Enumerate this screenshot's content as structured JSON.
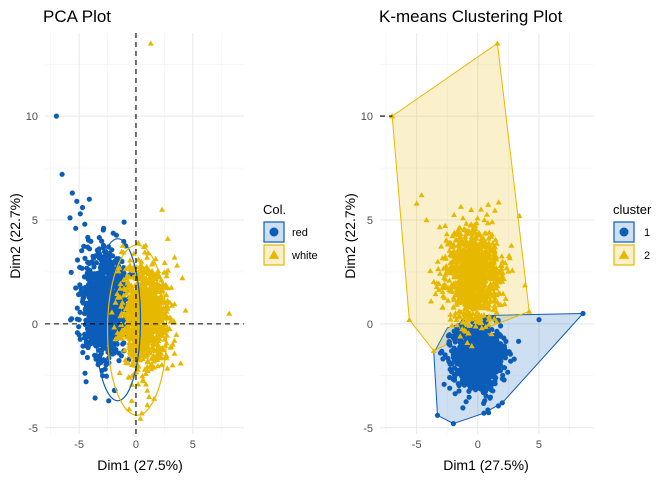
{
  "chart_data": [
    {
      "type": "scatter",
      "title": "PCA Plot",
      "xlabel": "Dim1 (27.5%)",
      "ylabel": "Dim2 (22.7%)",
      "xlim": [
        -8,
        9.5
      ],
      "ylim": [
        -5.3,
        14
      ],
      "xticks": [
        -5,
        0,
        5
      ],
      "yticks": [
        -5,
        0,
        5,
        10
      ],
      "xtick_labels": [
        "-5",
        "0",
        "5"
      ],
      "ytick_labels": [
        "-5",
        "0",
        "5",
        "10"
      ],
      "grid": true,
      "reference_lines": {
        "x": 0,
        "y": 0
      },
      "legend": {
        "title": "Col.",
        "placement": "right"
      },
      "series": [
        {
          "name": "red",
          "marker": "circle",
          "color": "#0c5db8",
          "cluster_center": [
            -2.8,
            0.9
          ],
          "spread": [
            1.3,
            1.6
          ],
          "concentration_ellipse": {
            "center": [
              -1.6,
              0.2
            ],
            "radii": [
              2.0,
              3.9
            ]
          },
          "outliers": [
            [
              -7.0,
              10.0
            ],
            [
              -6.5,
              7.2
            ],
            [
              -5.6,
              6.3
            ],
            [
              -5.2,
              5.9
            ],
            [
              -4.9,
              5.3
            ],
            [
              -4.5,
              4.8
            ],
            [
              -5.8,
              5.1
            ],
            [
              -4.1,
              6.0
            ],
            [
              -5.3,
              4.6
            ],
            [
              -4.7,
              5.6
            ],
            [
              -5.0,
              0.2
            ],
            [
              -4.1,
              -1.0
            ],
            [
              -1.9,
              -3.2
            ],
            [
              -2.4,
              -3.7
            ]
          ]
        },
        {
          "name": "white",
          "marker": "triangle",
          "color": "#e7b800",
          "cluster_center": [
            0.8,
            0.4
          ],
          "spread": [
            1.3,
            1.7
          ],
          "concentration_ellipse": {
            "center": [
              0.1,
              -0.3
            ],
            "radii": [
              2.6,
              4.1
            ]
          },
          "outliers": [
            [
              1.3,
              13.5
            ],
            [
              2.3,
              5.5
            ],
            [
              8.2,
              0.5
            ],
            [
              1.0,
              -3.9
            ],
            [
              0.5,
              -4.3
            ],
            [
              1.6,
              -3.6
            ],
            [
              -0.6,
              -4.1
            ],
            [
              2.8,
              4.1
            ],
            [
              3.4,
              3.2
            ]
          ]
        }
      ]
    },
    {
      "type": "scatter",
      "title": "K-means Clustering Plot",
      "xlabel": "Dim1 (27.5%)",
      "ylabel": "Dim2 (22.7%)",
      "xlim": [
        -8,
        9.5
      ],
      "ylim": [
        -5.3,
        14
      ],
      "xticks": [
        -5,
        0,
        5
      ],
      "yticks": [
        -5,
        0,
        5,
        10
      ],
      "xtick_labels": [
        "-5",
        "0",
        "5"
      ],
      "ytick_labels": [
        "-5",
        "0",
        "5",
        "10"
      ],
      "grid": true,
      "reference_lines": {
        "x": null,
        "y": 10
      },
      "legend": {
        "title": "cluster",
        "placement": "right"
      },
      "series": [
        {
          "name": "1",
          "marker": "circle",
          "color": "#0c5db8",
          "cluster_center": [
            0.0,
            -1.6
          ],
          "spread": [
            1.3,
            1.0
          ],
          "convex_hull": [
            [
              8.6,
              0.5
            ],
            [
              0.3,
              0.4
            ],
            [
              -2.5,
              -0.2
            ],
            [
              -3.6,
              -1.4
            ],
            [
              -3.3,
              -4.4
            ],
            [
              -2.0,
              -4.8
            ],
            [
              0.5,
              -4.3
            ],
            [
              2.0,
              -3.8
            ]
          ],
          "outliers": [
            [
              8.6,
              0.5
            ],
            [
              5.0,
              0.2
            ],
            [
              -3.3,
              -4.4
            ],
            [
              -2.0,
              -4.8
            ],
            [
              0.5,
              -4.3
            ],
            [
              2.0,
              -3.8
            ]
          ]
        },
        {
          "name": "2",
          "marker": "triangle",
          "color": "#e7b800",
          "cluster_center": [
            -0.4,
            2.4
          ],
          "spread": [
            1.5,
            1.5
          ],
          "convex_hull": [
            [
              -7.0,
              10.0
            ],
            [
              1.6,
              13.5
            ],
            [
              4.2,
              0.6
            ],
            [
              -1.9,
              -0.8
            ],
            [
              -3.6,
              -1.3
            ],
            [
              -5.6,
              0.2
            ]
          ],
          "outliers": [
            [
              -7.0,
              10.0
            ],
            [
              1.6,
              13.5
            ],
            [
              -5.6,
              0.2
            ],
            [
              -3.6,
              -1.3
            ],
            [
              4.2,
              0.6
            ],
            [
              -5.0,
              5.8
            ],
            [
              -4.6,
              6.2
            ],
            [
              -4.2,
              5.0
            ],
            [
              3.4,
              5.2
            ]
          ]
        }
      ]
    }
  ]
}
